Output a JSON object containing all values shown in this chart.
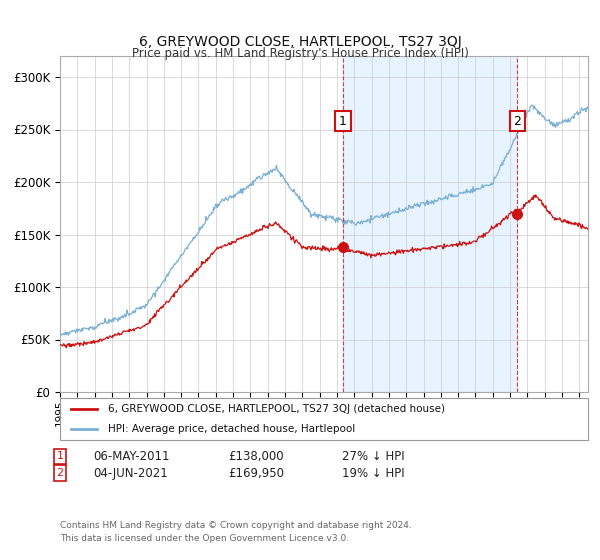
{
  "title": "6, GREYWOOD CLOSE, HARTLEPOOL, TS27 3QJ",
  "subtitle": "Price paid vs. HM Land Registry's House Price Index (HPI)",
  "hpi_color": "#7bafd4",
  "price_color": "#cc1111",
  "marker1_year": 2011.35,
  "marker1_price": 138000,
  "marker1_label": "06-MAY-2011",
  "marker1_amount": "£138,000",
  "marker1_pct": "27% ↓ HPI",
  "marker2_year": 2021.42,
  "marker2_price": 169950,
  "marker2_label": "04-JUN-2021",
  "marker2_amount": "£169,950",
  "marker2_pct": "19% ↓ HPI",
  "legend_price_label": "6, GREYWOOD CLOSE, HARTLEPOOL, TS27 3QJ (detached house)",
  "legend_hpi_label": "HPI: Average price, detached house, Hartlepool",
  "footnote": "Contains HM Land Registry data © Crown copyright and database right 2024.\nThis data is licensed under the Open Government Licence v3.0.",
  "xmin": 1995,
  "xmax": 2025.5,
  "ylim": [
    0,
    320000
  ],
  "yticks": [
    0,
    50000,
    100000,
    150000,
    200000,
    250000,
    300000
  ],
  "background_color": "#ffffff",
  "grid_color": "#cccccc",
  "shade_color": "#ddeeff"
}
